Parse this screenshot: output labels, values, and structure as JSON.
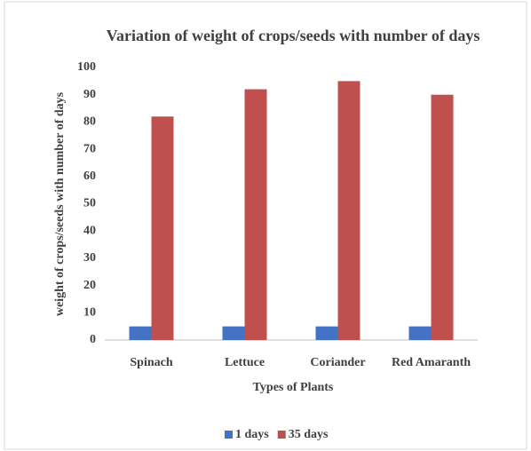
{
  "chart_data": {
    "type": "bar",
    "title": "Variation of weight of crops/seeds with number of days",
    "x_label": "Types of Plants",
    "y_label": "weight of crops/seeds with number of days",
    "categories": [
      "Spinach",
      "Lettuce",
      "Coriander",
      "Red Amaranth"
    ],
    "series": [
      {
        "name": "1 days",
        "color": "#4472c4",
        "values": [
          5,
          5,
          5,
          5
        ]
      },
      {
        "name": "35 days",
        "color": "#c0504d",
        "values": [
          82,
          92,
          95,
          90
        ]
      }
    ],
    "ylim": [
      0,
      100
    ],
    "yticks": [
      0,
      10,
      20,
      30,
      40,
      50,
      60,
      70,
      80,
      90,
      100
    ],
    "grid": false,
    "legend": "bottom"
  }
}
